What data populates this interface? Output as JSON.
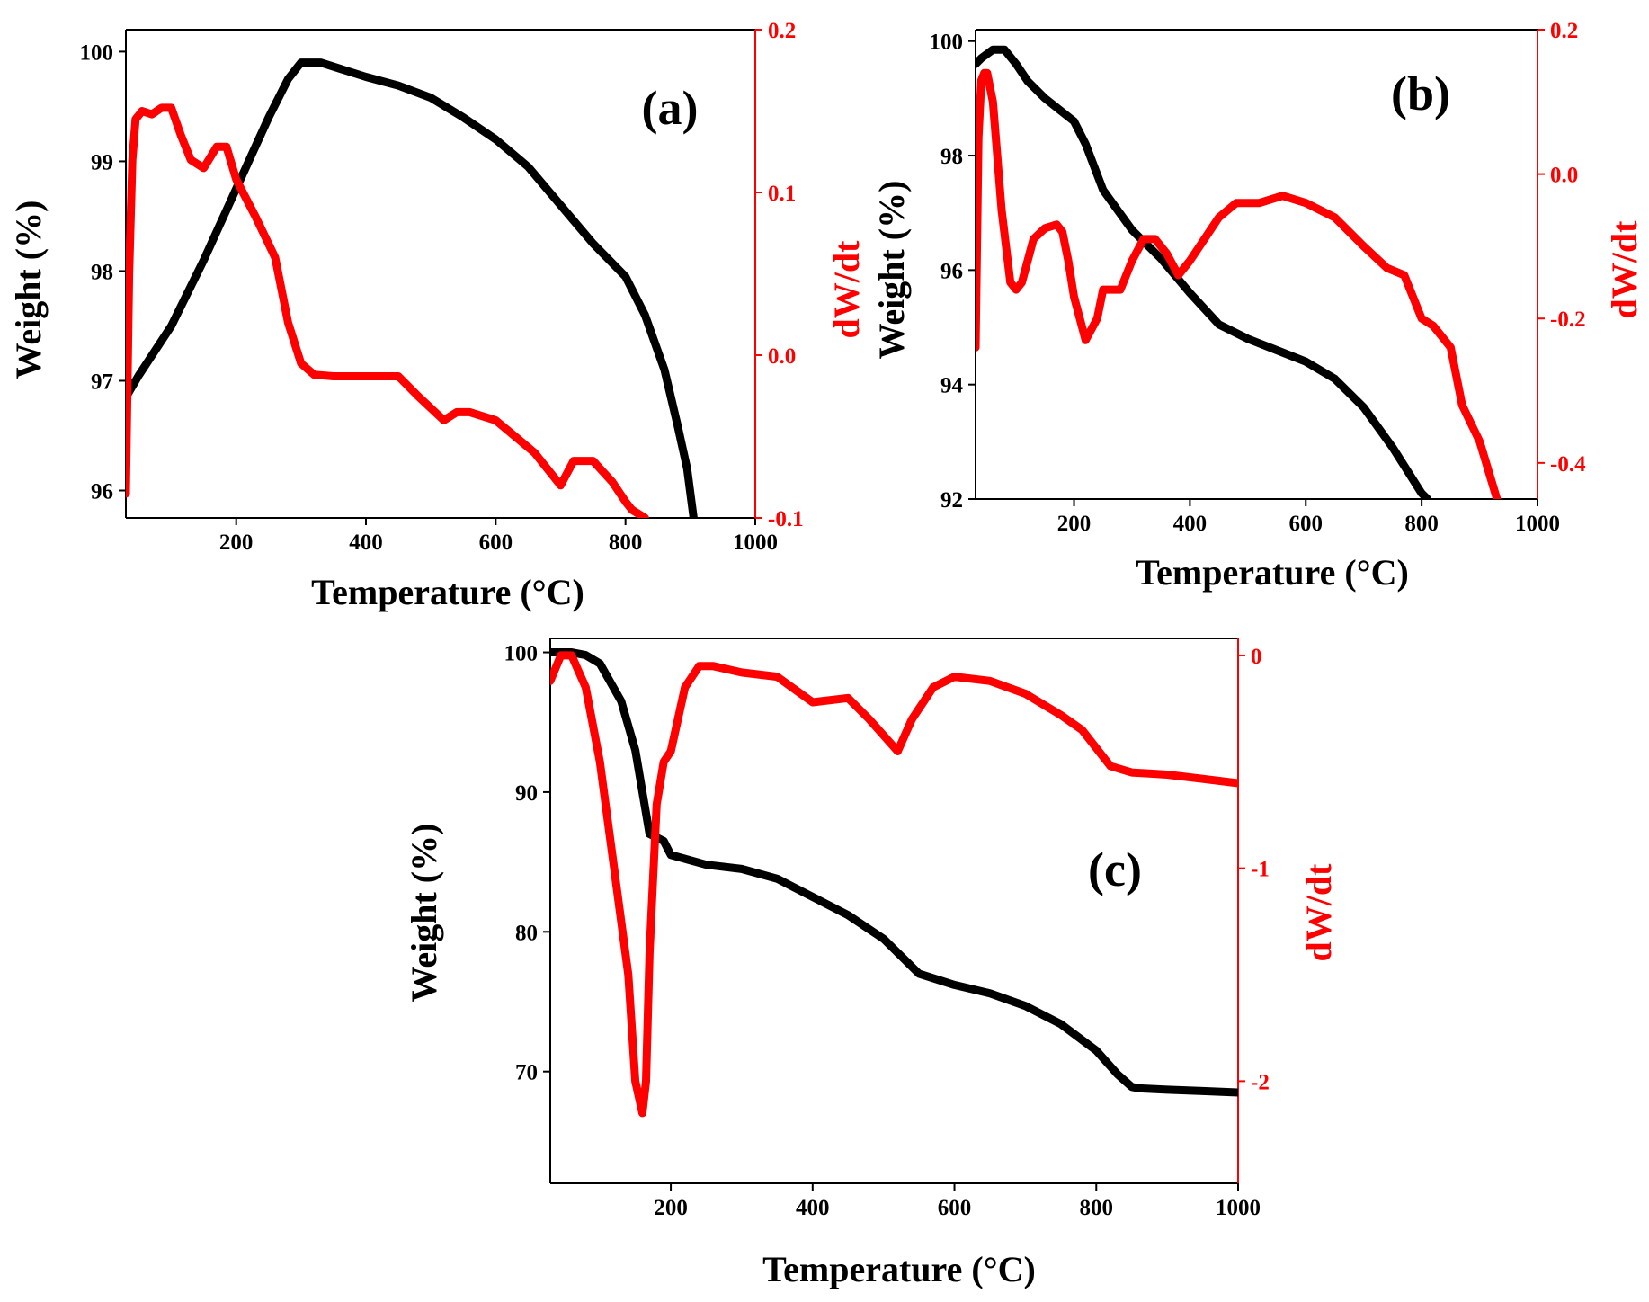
{
  "chart_data": [
    {
      "type": "line",
      "panel_label": "(a)",
      "xlabel": "Temperature (°C)",
      "ylabel": "Weight (%)",
      "ylabel_right": "dW/dt",
      "xlim": [
        30,
        1000
      ],
      "ylim": [
        95.75,
        100.2
      ],
      "ylim_right": [
        -0.1,
        0.2
      ],
      "x_ticks": [
        200,
        400,
        600,
        800,
        1000
      ],
      "y_ticks": [
        96,
        97,
        98,
        99,
        100
      ],
      "y_ticks_right": [
        -0.1,
        0.0,
        0.1,
        0.2
      ],
      "x_tick_labels": [
        "200",
        "400",
        "600",
        "800",
        "1000"
      ],
      "y_tick_labels": [
        "96",
        "97",
        "98",
        "99",
        "100"
      ],
      "y_tick_labels_right": [
        "-0.1",
        "0.0",
        "0.1",
        "0.2"
      ],
      "colors": {
        "weight": "#000000",
        "dwdt": "#ff0000"
      },
      "series": [
        {
          "name": "Weight",
          "axis": "left",
          "color": "#000000",
          "x": [
            30,
            50,
            100,
            150,
            200,
            250,
            280,
            300,
            330,
            400,
            450,
            500,
            550,
            600,
            650,
            700,
            750,
            800,
            830,
            860,
            880,
            895,
            905
          ],
          "y": [
            96.85,
            97.05,
            97.5,
            98.1,
            98.75,
            99.4,
            99.75,
            99.9,
            99.9,
            99.77,
            99.69,
            99.58,
            99.4,
            99.2,
            98.95,
            98.6,
            98.25,
            97.95,
            97.6,
            97.1,
            96.6,
            96.2,
            95.75
          ]
        },
        {
          "name": "dW/dt",
          "axis": "right",
          "color": "#ff0000",
          "x": [
            30,
            35,
            40,
            45,
            55,
            70,
            85,
            100,
            115,
            130,
            150,
            170,
            185,
            200,
            230,
            260,
            280,
            300,
            320,
            350,
            400,
            450,
            480,
            520,
            540,
            560,
            600,
            630,
            660,
            700,
            720,
            750,
            780,
            800,
            810,
            830
          ],
          "y": [
            -0.085,
            0.05,
            0.12,
            0.145,
            0.15,
            0.148,
            0.152,
            0.152,
            0.135,
            0.12,
            0.115,
            0.128,
            0.128,
            0.108,
            0.085,
            0.06,
            0.02,
            -0.005,
            -0.012,
            -0.013,
            -0.013,
            -0.013,
            -0.025,
            -0.04,
            -0.035,
            -0.035,
            -0.04,
            -0.05,
            -0.06,
            -0.08,
            -0.065,
            -0.065,
            -0.078,
            -0.09,
            -0.095,
            -0.1
          ]
        }
      ]
    },
    {
      "type": "line",
      "panel_label": "(b)",
      "xlabel": "Temperature (°C)",
      "ylabel": "Weight (%)",
      "ylabel_right": "dW/dt",
      "xlim": [
        30,
        1000
      ],
      "ylim": [
        92,
        100.2
      ],
      "ylim_right": [
        -0.45,
        0.2
      ],
      "x_ticks": [
        200,
        400,
        600,
        800,
        1000
      ],
      "y_ticks": [
        92,
        94,
        96,
        98,
        100
      ],
      "y_ticks_right": [
        -0.4,
        -0.2,
        0.0,
        0.2
      ],
      "x_tick_labels": [
        "200",
        "400",
        "600",
        "800",
        "1000"
      ],
      "y_tick_labels": [
        "92",
        "94",
        "96",
        "98",
        "100"
      ],
      "y_tick_labels_right": [
        "-0.4",
        "-0.2",
        "0.0",
        "0.2"
      ],
      "colors": {
        "weight": "#000000",
        "dwdt": "#ff0000"
      },
      "series": [
        {
          "name": "Weight",
          "axis": "left",
          "color": "#000000",
          "x": [
            30,
            40,
            60,
            80,
            100,
            120,
            150,
            200,
            220,
            250,
            300,
            350,
            400,
            450,
            500,
            550,
            600,
            650,
            700,
            750,
            800,
            810
          ],
          "y": [
            99.6,
            99.7,
            99.85,
            99.85,
            99.6,
            99.3,
            99.0,
            98.6,
            98.2,
            97.4,
            96.7,
            96.2,
            95.6,
            95.05,
            94.8,
            94.6,
            94.4,
            94.1,
            93.6,
            92.9,
            92.1,
            92.0
          ]
        },
        {
          "name": "dW/dt",
          "axis": "right",
          "color": "#ff0000",
          "x": [
            30,
            35,
            40,
            45,
            50,
            60,
            75,
            90,
            100,
            110,
            130,
            150,
            170,
            180,
            190,
            200,
            220,
            240,
            250,
            260,
            280,
            300,
            320,
            340,
            360,
            380,
            400,
            450,
            480,
            520,
            560,
            600,
            650,
            700,
            740,
            770,
            800,
            820,
            850,
            870,
            900,
            930
          ],
          "y": [
            -0.24,
            0.05,
            0.13,
            0.14,
            0.14,
            0.1,
            -0.05,
            -0.15,
            -0.16,
            -0.15,
            -0.09,
            -0.075,
            -0.07,
            -0.08,
            -0.12,
            -0.17,
            -0.23,
            -0.2,
            -0.16,
            -0.16,
            -0.16,
            -0.12,
            -0.09,
            -0.09,
            -0.11,
            -0.14,
            -0.12,
            -0.06,
            -0.04,
            -0.04,
            -0.03,
            -0.04,
            -0.06,
            -0.1,
            -0.13,
            -0.14,
            -0.2,
            -0.21,
            -0.24,
            -0.32,
            -0.37,
            -0.45
          ]
        }
      ]
    },
    {
      "type": "line",
      "panel_label": "(c)",
      "xlabel": "Temperature (°C)",
      "ylabel": "Weight (%)",
      "ylabel_right": "dW/dt",
      "xlim": [
        30,
        1000
      ],
      "ylim": [
        62,
        101
      ],
      "ylim_right": [
        -2.48,
        0.08
      ],
      "x_ticks": [
        200,
        400,
        600,
        800,
        1000
      ],
      "y_ticks": [
        70,
        80,
        90,
        100
      ],
      "y_ticks_right": [
        -2,
        -1,
        0
      ],
      "x_tick_labels": [
        "200",
        "400",
        "600",
        "800",
        "1000"
      ],
      "y_tick_labels": [
        "70",
        "80",
        "90",
        "100"
      ],
      "y_tick_labels_right": [
        "-2",
        "-1",
        "0"
      ],
      "colors": {
        "weight": "#000000",
        "dwdt": "#ff0000"
      },
      "series": [
        {
          "name": "Weight",
          "axis": "left",
          "color": "#000000",
          "x": [
            30,
            60,
            80,
            100,
            130,
            150,
            170,
            190,
            200,
            250,
            300,
            350,
            400,
            450,
            500,
            550,
            600,
            650,
            700,
            750,
            800,
            830,
            850,
            860,
            900,
            950,
            1000
          ],
          "y": [
            100,
            100,
            99.8,
            99.2,
            96.5,
            93.0,
            87.0,
            86.5,
            85.5,
            84.8,
            84.5,
            83.8,
            82.5,
            81.2,
            79.5,
            77.0,
            76.2,
            75.6,
            74.7,
            73.4,
            71.5,
            69.8,
            68.9,
            68.8,
            68.7,
            68.6,
            68.5
          ]
        },
        {
          "name": "dW/dt",
          "axis": "right",
          "color": "#ff0000",
          "x": [
            30,
            45,
            60,
            80,
            100,
            120,
            140,
            150,
            160,
            165,
            170,
            180,
            190,
            200,
            220,
            240,
            260,
            300,
            350,
            400,
            450,
            480,
            520,
            540,
            570,
            600,
            650,
            700,
            750,
            780,
            820,
            850,
            900,
            950,
            1000
          ],
          "y": [
            -0.12,
            0.0,
            0.0,
            -0.15,
            -0.5,
            -1.0,
            -1.5,
            -2.0,
            -2.15,
            -2.0,
            -1.4,
            -0.7,
            -0.5,
            -0.45,
            -0.15,
            -0.05,
            -0.05,
            -0.08,
            -0.1,
            -0.22,
            -0.2,
            -0.3,
            -0.45,
            -0.3,
            -0.15,
            -0.1,
            -0.12,
            -0.18,
            -0.28,
            -0.35,
            -0.52,
            -0.55,
            -0.56,
            -0.58,
            -0.6
          ]
        }
      ]
    }
  ]
}
